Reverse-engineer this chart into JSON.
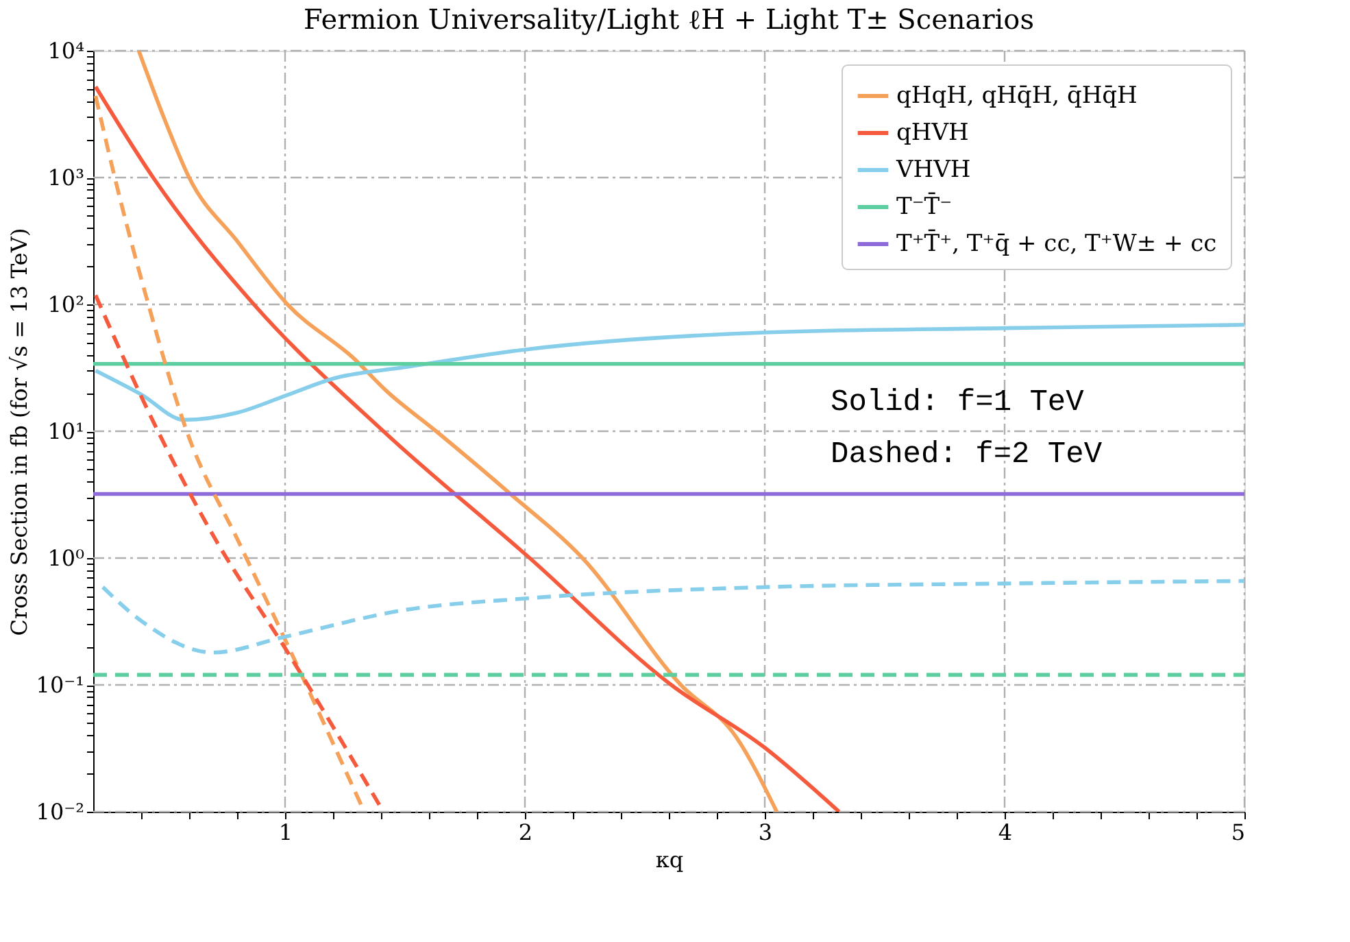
{
  "chart_data": {
    "type": "line",
    "title": "Fermion Universality/Light ℓH + Light T± Scenarios",
    "xlabel": "κq",
    "ylabel": "Cross Section in fb (for √s = 13 TeV)",
    "log": "y",
    "xlim": [
      0.2,
      5
    ],
    "ylim": [
      0.01,
      10000
    ],
    "xticks": [
      {
        "value": 0.4,
        "label": null
      },
      {
        "value": 0.6,
        "label": null
      },
      {
        "value": 0.8,
        "label": null
      },
      1,
      {
        "value": 1.2,
        "label": null
      },
      {
        "value": 1.4,
        "label": null
      },
      {
        "value": 1.6,
        "label": null
      },
      {
        "value": 1.8,
        "label": null
      },
      2,
      {
        "value": 2.2,
        "label": null
      },
      {
        "value": 2.4,
        "label": null
      },
      {
        "value": 2.6,
        "label": null
      },
      {
        "value": 2.8,
        "label": null
      },
      3,
      {
        "value": 3.2,
        "label": null
      },
      {
        "value": 3.4,
        "label": null
      },
      {
        "value": 3.6,
        "label": null
      },
      {
        "value": 3.8,
        "label": null
      },
      4,
      {
        "value": 4.2,
        "label": null
      },
      {
        "value": 4.4,
        "label": null
      },
      {
        "value": 4.6,
        "label": null
      },
      {
        "value": 4.8,
        "label": null
      },
      5
    ],
    "yticks": [
      {
        "value": 0.01,
        "label": "10⁻²"
      },
      {
        "value": 0.02,
        "label": null
      },
      {
        "value": 0.03,
        "label": null
      },
      {
        "value": 0.04,
        "label": null
      },
      {
        "value": 0.05,
        "label": null
      },
      {
        "value": 0.06,
        "label": null
      },
      {
        "value": 0.07,
        "label": null
      },
      {
        "value": 0.08,
        "label": null
      },
      {
        "value": 0.09,
        "label": null
      },
      {
        "value": 0.1,
        "label": "10⁻¹"
      },
      {
        "value": 0.2,
        "label": null
      },
      {
        "value": 0.3,
        "label": null
      },
      {
        "value": 0.4,
        "label": null
      },
      {
        "value": 0.5,
        "label": null
      },
      {
        "value": 0.6,
        "label": null
      },
      {
        "value": 0.7,
        "label": null
      },
      {
        "value": 0.8,
        "label": null
      },
      {
        "value": 0.9,
        "label": null
      },
      {
        "value": 1,
        "label": "10⁰"
      },
      {
        "value": 2,
        "label": null
      },
      {
        "value": 3,
        "label": null
      },
      {
        "value": 4,
        "label": null
      },
      {
        "value": 5,
        "label": null
      },
      {
        "value": 6,
        "label": null
      },
      {
        "value": 7,
        "label": null
      },
      {
        "value": 8,
        "label": null
      },
      {
        "value": 9,
        "label": null
      },
      {
        "value": 10,
        "label": "10¹"
      },
      {
        "value": 20,
        "label": null
      },
      {
        "value": 30,
        "label": null
      },
      {
        "value": 40,
        "label": null
      },
      {
        "value": 50,
        "label": null
      },
      {
        "value": 60,
        "label": null
      },
      {
        "value": 70,
        "label": null
      },
      {
        "value": 80,
        "label": null
      },
      {
        "value": 90,
        "label": null
      },
      {
        "value": 100,
        "label": "10²"
      },
      {
        "value": 200,
        "label": null
      },
      {
        "value": 300,
        "label": null
      },
      {
        "value": 400,
        "label": null
      },
      {
        "value": 500,
        "label": null
      },
      {
        "value": 600,
        "label": null
      },
      {
        "value": 700,
        "label": null
      },
      {
        "value": 800,
        "label": null
      },
      {
        "value": 900,
        "label": null
      },
      {
        "value": 1000,
        "label": "10³"
      },
      {
        "value": 2000,
        "label": null
      },
      {
        "value": 3000,
        "label": null
      },
      {
        "value": 4000,
        "label": null
      },
      {
        "value": 5000,
        "label": null
      },
      {
        "value": 6000,
        "label": null
      },
      {
        "value": 7000,
        "label": null
      },
      {
        "value": 8000,
        "label": null
      },
      {
        "value": 9000,
        "label": null
      },
      {
        "value": 10000,
        "label": "10⁴"
      }
    ],
    "grid": true,
    "legend": "top right",
    "annotations": [
      "Solid: f=1 TeV",
      "Dashed: f=2 TeV"
    ],
    "series": [
      {
        "name": "qHqH, qHq̄H, q̄Hq̄H",
        "color": "#f5a15a",
        "line_style": "solid",
        "x": [
          0.39,
          0.5,
          0.6,
          0.8,
          1.01,
          1.29,
          1.42,
          1.63,
          1.94,
          2.24,
          2.65,
          2.88,
          3.05
        ],
        "values": [
          10000,
          2800,
          1000,
          316,
          100,
          37,
          21,
          10,
          3.2,
          1,
          0.1,
          0.039,
          0.01
        ]
      },
      {
        "name": "qHVH",
        "color": "#f65a3d",
        "line_style": "solid",
        "x": [
          0.21,
          0.45,
          0.87,
          1.41,
          2.02,
          2.61,
          3.0,
          3.31
        ],
        "values": [
          5200,
          1000,
          100,
          10,
          1,
          0.1,
          0.032,
          0.01
        ]
      },
      {
        "name": "VHVH",
        "color": "#87ceeb",
        "line_style": "solid",
        "x": [
          0.21,
          0.4,
          0.58,
          0.8,
          1.0,
          1.2,
          1.5,
          2.0,
          3.0,
          4.0,
          5.0
        ],
        "values": [
          30,
          19.5,
          12.3,
          14,
          19,
          26,
          32,
          44,
          60,
          65,
          69
        ]
      },
      {
        "name": "T⁻T̄⁻",
        "color": "#5ccea0",
        "line_style": "solid",
        "x": [
          0.2,
          5
        ],
        "values": [
          34,
          34
        ]
      },
      {
        "name": "T⁺T̄⁺, T⁺q̄ + cc, T⁺W± + cc",
        "color": "#8f6ad9",
        "line_style": "solid",
        "x": [
          0.2,
          5
        ],
        "values": [
          3.2,
          3.2
        ]
      },
      {
        "color": "#f5a15a",
        "line_style": "dashed",
        "x": [
          0.21,
          0.29,
          0.43,
          0.59,
          0.81,
          0.99,
          1.33
        ],
        "values": [
          4400,
          1000,
          100,
          10,
          1.3,
          0.25,
          0.01
        ]
      },
      {
        "color": "#f65a3d",
        "line_style": "dashed",
        "x": [
          0.21,
          0.47,
          0.71,
          1.0,
          1.41
        ],
        "values": [
          118,
          10,
          1.4,
          0.195,
          0.01
        ]
      },
      {
        "color": "#87ceeb",
        "line_style": "dashed",
        "x": [
          0.24,
          0.4,
          0.7,
          1.0,
          1.5,
          2.0,
          3.0,
          4.0,
          5.0
        ],
        "values": [
          0.59,
          0.32,
          0.18,
          0.24,
          0.39,
          0.48,
          0.59,
          0.63,
          0.66
        ]
      },
      {
        "color": "#5ccea0",
        "line_style": "dashed",
        "x": [
          0.2,
          5
        ],
        "values": [
          0.12,
          0.12
        ]
      }
    ]
  }
}
